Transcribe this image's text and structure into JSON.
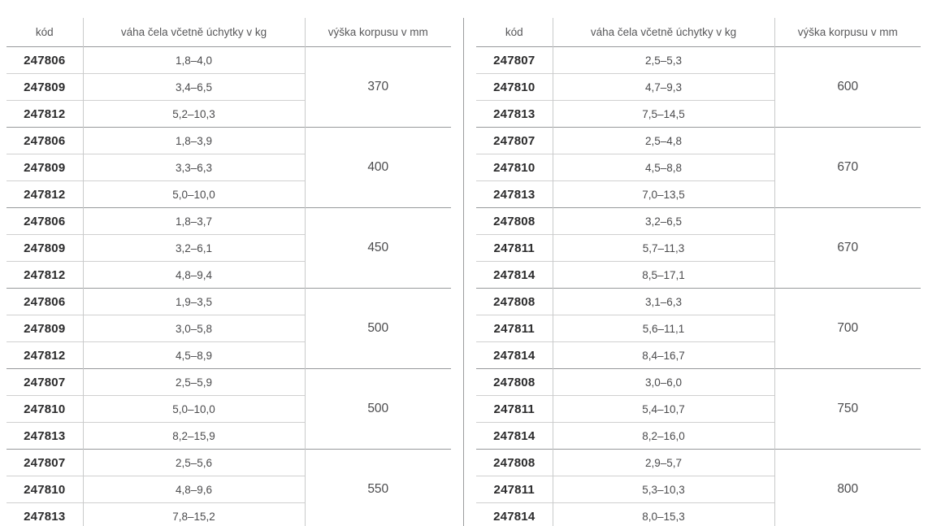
{
  "columns": {
    "code": "kód",
    "weight": "váha čela včetně úchytky v kg",
    "height": "výška korpusu v mm"
  },
  "colors": {
    "rule_strong": "#97999b",
    "rule_light": "#d0d0d0",
    "header_text": "#58585a",
    "code_text": "#2b2b2c",
    "value_text": "#4b4b4d"
  },
  "tables": [
    {
      "name": "left",
      "groups": [
        {
          "height": "370",
          "rows": [
            {
              "code": "247806",
              "weight": "1,8–4,0"
            },
            {
              "code": "247809",
              "weight": "3,4–6,5"
            },
            {
              "code": "247812",
              "weight": "5,2–10,3"
            }
          ]
        },
        {
          "height": "400",
          "rows": [
            {
              "code": "247806",
              "weight": "1,8–3,9"
            },
            {
              "code": "247809",
              "weight": "3,3–6,3"
            },
            {
              "code": "247812",
              "weight": "5,0–10,0"
            }
          ]
        },
        {
          "height": "450",
          "rows": [
            {
              "code": "247806",
              "weight": "1,8–3,7"
            },
            {
              "code": "247809",
              "weight": "3,2–6,1"
            },
            {
              "code": "247812",
              "weight": "4,8–9,4"
            }
          ]
        },
        {
          "height": "500",
          "rows": [
            {
              "code": "247806",
              "weight": "1,9–3,5"
            },
            {
              "code": "247809",
              "weight": "3,0–5,8"
            },
            {
              "code": "247812",
              "weight": "4,5–8,9"
            }
          ]
        },
        {
          "height": "500",
          "rows": [
            {
              "code": "247807",
              "weight": "2,5–5,9"
            },
            {
              "code": "247810",
              "weight": "5,0–10,0"
            },
            {
              "code": "247813",
              "weight": "8,2–15,9"
            }
          ]
        },
        {
          "height": "550",
          "rows": [
            {
              "code": "247807",
              "weight": "2,5–5,6"
            },
            {
              "code": "247810",
              "weight": "4,8–9,6"
            },
            {
              "code": "247813",
              "weight": "7,8–15,2"
            }
          ]
        }
      ]
    },
    {
      "name": "right",
      "groups": [
        {
          "height": "600",
          "rows": [
            {
              "code": "247807",
              "weight": "2,5–5,3"
            },
            {
              "code": "247810",
              "weight": "4,7–9,3"
            },
            {
              "code": "247813",
              "weight": "7,5–14,5"
            }
          ]
        },
        {
          "height": "670",
          "rows": [
            {
              "code": "247807",
              "weight": "2,5–4,8"
            },
            {
              "code": "247810",
              "weight": "4,5–8,8"
            },
            {
              "code": "247813",
              "weight": "7,0–13,5"
            }
          ]
        },
        {
          "height": "670",
          "rows": [
            {
              "code": "247808",
              "weight": "3,2–6,5"
            },
            {
              "code": "247811",
              "weight": "5,7–11,3"
            },
            {
              "code": "247814",
              "weight": "8,5–17,1"
            }
          ]
        },
        {
          "height": "700",
          "rows": [
            {
              "code": "247808",
              "weight": "3,1–6,3"
            },
            {
              "code": "247811",
              "weight": "5,6–11,1"
            },
            {
              "code": "247814",
              "weight": "8,4–16,7"
            }
          ]
        },
        {
          "height": "750",
          "rows": [
            {
              "code": "247808",
              "weight": "3,0–6,0"
            },
            {
              "code": "247811",
              "weight": "5,4–10,7"
            },
            {
              "code": "247814",
              "weight": "8,2–16,0"
            }
          ]
        },
        {
          "height": "800",
          "rows": [
            {
              "code": "247808",
              "weight": "2,9–5,7"
            },
            {
              "code": "247811",
              "weight": "5,3–10,3"
            },
            {
              "code": "247814",
              "weight": "8,0–15,3"
            }
          ]
        }
      ]
    }
  ]
}
